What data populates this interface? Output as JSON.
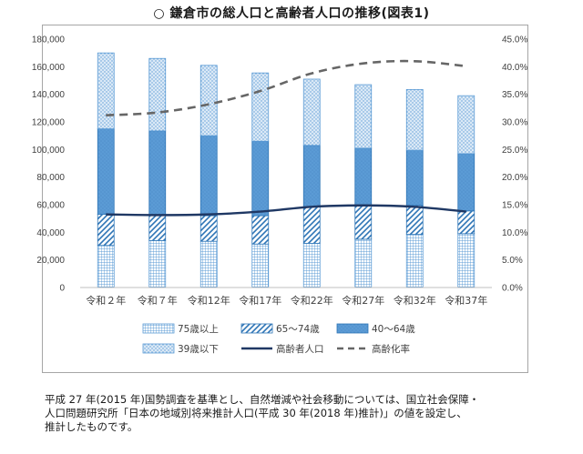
{
  "title": "○ 鎌倉市の総人口と高齢者人口の推移(図表1)",
  "note": [
    "平成 27 年(2015 年)国勢調査を基準とし、自然増減や社会移動については、国立社会保障・",
    "人口問題研究所「日本の地域別将来推計人口(平成 30 年(2018 年)推計)」の値を設定し、",
    "推計したものです。"
  ],
  "chart_data": {
    "type": "bar",
    "stacked": true,
    "categories": [
      "令和２年",
      "令和７年",
      "令和12年",
      "令和17年",
      "令和22年",
      "令和27年",
      "令和32年",
      "令和37年"
    ],
    "y_left": {
      "ylim": [
        0,
        180000
      ],
      "ticks": [
        "0",
        "20,000",
        "40,000",
        "60,000",
        "80,000",
        "100,000",
        "120,000",
        "140,000",
        "160,000",
        "180,000"
      ]
    },
    "y_right": {
      "ylim": [
        0,
        0.45
      ],
      "ticks": [
        "0.0%",
        "5.0%",
        "10.0%",
        "15.0%",
        "20.0%",
        "25.0%",
        "30.0%",
        "35.0%",
        "40.0%",
        "45.0%"
      ]
    },
    "series": [
      {
        "name": "75歳以上",
        "kind": "bar",
        "pattern": "grid",
        "values": [
          30500,
          34000,
          33500,
          31500,
          32000,
          35000,
          38500,
          39000
        ]
      },
      {
        "name": "65～74歳",
        "kind": "bar",
        "pattern": "diag",
        "values": [
          22500,
          18500,
          18500,
          20500,
          26500,
          24500,
          21000,
          16500
        ]
      },
      {
        "name": "40～64歳",
        "kind": "bar",
        "pattern": "solid",
        "values": [
          62000,
          61000,
          58000,
          54000,
          44500,
          41500,
          40000,
          41500
        ]
      },
      {
        "name": "39歳以下",
        "kind": "bar",
        "pattern": "dots",
        "values": [
          55000,
          52500,
          51000,
          49500,
          48000,
          46000,
          44000,
          42000
        ]
      },
      {
        "name": "高齢者人口",
        "kind": "line",
        "axis": "left",
        "color": "#1f3864",
        "values": [
          53000,
          52500,
          53000,
          55000,
          58500,
          59500,
          58500,
          55000
        ]
      },
      {
        "name": "高齢化率",
        "kind": "line",
        "axis": "right",
        "dashed": true,
        "color": "#666666",
        "values": [
          0.312,
          0.317,
          0.332,
          0.356,
          0.388,
          0.406,
          0.41,
          0.401
        ]
      }
    ],
    "colors": {
      "light_blue": "#9dc3e6",
      "mid_blue": "#5b9bd5",
      "dark_blue": "#2e75b6",
      "line_dark": "#1f3864",
      "line_gray": "#666666"
    },
    "legend": {
      "placement": "bottom"
    },
    "grid": false
  }
}
